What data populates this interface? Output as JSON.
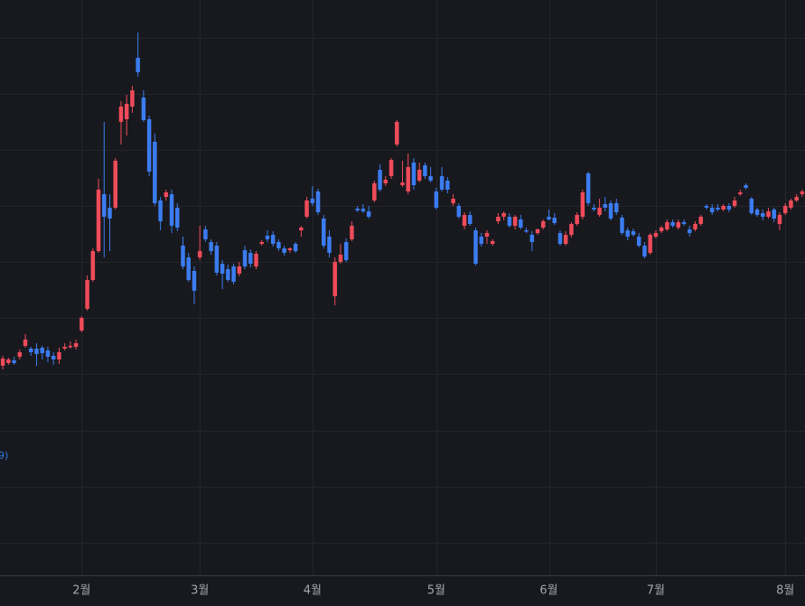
{
  "chart_data": {
    "type": "candlestick",
    "annotation": "9)",
    "up_color": "#ef4b5a",
    "down_color": "#3b7cf0",
    "ylim": [
      0,
      640
    ],
    "ygrid": [
      598,
      536,
      474,
      412,
      350,
      288,
      226,
      163,
      101,
      39
    ],
    "categories": [
      null,
      null,
      null,
      null,
      null,
      null,
      null,
      null,
      null,
      null,
      null,
      null,
      null,
      null,
      "2월",
      null,
      null,
      null,
      null,
      null,
      null,
      null,
      null,
      null,
      null,
      null,
      null,
      null,
      null,
      null,
      null,
      null,
      null,
      null,
      null,
      "3월",
      null,
      null,
      null,
      null,
      null,
      null,
      null,
      null,
      null,
      null,
      null,
      null,
      null,
      null,
      null,
      null,
      null,
      null,
      null,
      "4월",
      null,
      null,
      null,
      null,
      null,
      null,
      null,
      null,
      null,
      null,
      null,
      null,
      null,
      null,
      null,
      null,
      null,
      null,
      null,
      null,
      null,
      "5월",
      null,
      null,
      null,
      null,
      null,
      null,
      null,
      null,
      null,
      null,
      null,
      null,
      null,
      null,
      null,
      null,
      null,
      null,
      null,
      "6월",
      null,
      null,
      null,
      null,
      null,
      null,
      null,
      null,
      null,
      null,
      null,
      null,
      null,
      null,
      null,
      null,
      null,
      null,
      "7월",
      null,
      null,
      null,
      null,
      null,
      null,
      null,
      null,
      null,
      null,
      null,
      null,
      null,
      null,
      null,
      null,
      null,
      null,
      null,
      null,
      null,
      null,
      "8월",
      null,
      null,
      null
    ],
    "open": [
      235,
      238,
      241,
      245,
      257,
      254,
      254,
      255,
      252,
      246,
      242,
      254,
      256,
      256,
      274,
      298,
      330,
      362,
      425,
      410,
      410,
      505,
      508,
      522,
      576,
      532,
      508,
      483,
      418,
      422,
      425,
      410,
      368,
      355,
      340,
      355,
      386,
      372,
      368,
      348,
      342,
      345,
      337,
      363,
      360,
      345,
      370,
      379,
      380,
      372,
      365,
      363,
      370,
      385,
      400,
      420,
      428,
      398,
      378,
      312,
      350,
      372,
      375,
      409,
      409,
      406,
      418,
      452,
      437,
      445,
      480,
      435,
      428,
      460,
      440,
      457,
      445,
      428,
      445,
      440,
      415,
      412,
      390,
      402,
      385,
      378,
      378,
      370,
      395,
      400,
      400,
      390,
      397,
      385,
      380,
      382,
      388,
      400,
      399,
      382,
      370,
      380,
      392,
      400,
      448,
      410,
      402,
      414,
      415,
      415,
      399,
      385,
      384,
      378,
      368,
      360,
      378,
      384,
      386,
      394,
      388,
      394,
      386,
      386,
      392,
      412,
      410,
      410,
      408,
      412,
      412,
      425,
      435,
      420,
      408,
      404,
      400,
      408,
      392,
      404,
      410,
      418,
      425
    ],
    "high": [
      246,
      244,
      245,
      253,
      270,
      256,
      260,
      257,
      256,
      250,
      255,
      260,
      262,
      264,
      290,
      335,
      365,
      442,
      505,
      425,
      465,
      528,
      535,
      545,
      604,
      540,
      512,
      492,
      422,
      430,
      430,
      415,
      378,
      360,
      345,
      390,
      390,
      375,
      372,
      352,
      347,
      348,
      350,
      368,
      364,
      362,
      374,
      385,
      384,
      375,
      368,
      366,
      372,
      390,
      422,
      434,
      431,
      402,
      385,
      355,
      370,
      376,
      395,
      412,
      414,
      412,
      440,
      458,
      445,
      465,
      507,
      462,
      470,
      465,
      460,
      460,
      455,
      432,
      455,
      444,
      425,
      415,
      405,
      406,
      388,
      382,
      385,
      375,
      404,
      406,
      404,
      402,
      402,
      388,
      384,
      387,
      397,
      408,
      404,
      385,
      384,
      394,
      405,
      430,
      450,
      414,
      420,
      422,
      418,
      420,
      402,
      388,
      387,
      382,
      372,
      382,
      385,
      390,
      397,
      397,
      397,
      397,
      390,
      395,
      402,
      414,
      414,
      414,
      414,
      415,
      422,
      430,
      437,
      422,
      410,
      408,
      410,
      410,
      405,
      415,
      420,
      425,
      430
    ],
    "low": [
      231,
      236,
      236,
      242,
      255,
      246,
      235,
      242,
      239,
      236,
      237,
      252,
      254,
      253,
      272,
      296,
      328,
      360,
      355,
      362,
      408,
      480,
      490,
      515,
      555,
      505,
      445,
      412,
      385,
      418,
      382,
      384,
      342,
      328,
      303,
      352,
      372,
      358,
      335,
      320,
      328,
      325,
      334,
      342,
      344,
      342,
      368,
      372,
      367,
      362,
      357,
      360,
      360,
      378,
      398,
      412,
      402,
      365,
      355,
      302,
      348,
      350,
      373,
      405,
      404,
      398,
      416,
      428,
      434,
      442,
      478,
      433,
      425,
      430,
      438,
      442,
      438,
      408,
      428,
      426,
      412,
      398,
      386,
      390,
      346,
      367,
      370,
      368,
      392,
      396,
      388,
      386,
      386,
      382,
      362,
      380,
      386,
      396,
      391,
      368,
      368,
      377,
      390,
      397,
      412,
      406,
      400,
      406,
      396,
      402,
      380,
      374,
      378,
      366,
      354,
      358,
      376,
      382,
      384,
      388,
      386,
      390,
      378,
      384,
      390,
      408,
      402,
      406,
      406,
      405,
      410,
      423,
      430,
      402,
      400,
      396,
      398,
      394,
      385,
      402,
      408,
      416,
      422
    ],
    "close": [
      243,
      242,
      238,
      250,
      264,
      250,
      248,
      249,
      245,
      242,
      250,
      256,
      257,
      260,
      288,
      330,
      362,
      430,
      400,
      398,
      462,
      522,
      525,
      540,
      560,
      507,
      450,
      415,
      395,
      427,
      390,
      388,
      345,
      330,
      318,
      362,
      375,
      362,
      338,
      337,
      330,
      328,
      345,
      345,
      348,
      359,
      372,
      375,
      370,
      365,
      360,
      365,
      362,
      388,
      418,
      415,
      405,
      368,
      360,
      350,
      358,
      352,
      390,
      407,
      406,
      400,
      437,
      430,
      441,
      463,
      505,
      438,
      455,
      435,
      452,
      445,
      440,
      410,
      430,
      430,
      420,
      400,
      402,
      392,
      348,
      370,
      382,
      373,
      400,
      404,
      390,
      400,
      388,
      384,
      372,
      386,
      395,
      397,
      393,
      370,
      380,
      392,
      402,
      427,
      415,
      408,
      410,
      410,
      398,
      405,
      382,
      378,
      380,
      368,
      356,
      380,
      382,
      388,
      394,
      390,
      394,
      392,
      382,
      392,
      400,
      410,
      405,
      408,
      412,
      408,
      418,
      427,
      432,
      404,
      402,
      400,
      406,
      398,
      402,
      412,
      418,
      422,
      428
    ]
  }
}
